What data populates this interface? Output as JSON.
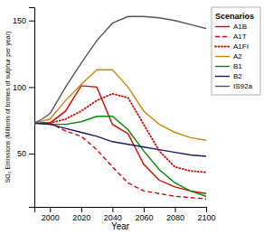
{
  "chart_data": {
    "type": "line",
    "xlabel": "Year",
    "ylabel": "SO₂ Emissions (Millions of tonnes of sulphur per year)",
    "xlim": [
      1990,
      2100
    ],
    "ylim": [
      10,
      160
    ],
    "xticks": [
      2000,
      2020,
      2040,
      2060,
      2080,
      2100
    ],
    "yticks": [
      50,
      100,
      150
    ],
    "grid": false,
    "legend": "right",
    "legend_title": "Scenarios",
    "series": [
      {
        "name": "A1B",
        "color": "#dd0000",
        "line_style": "solid",
        "x": [
          1990,
          2000,
          2010,
          2020,
          2030,
          2040,
          2050,
          2060,
          2070,
          2080,
          2090,
          2100
        ],
        "values": [
          73,
          73,
          82,
          101,
          100,
          72,
          65,
          42,
          30,
          25,
          22,
          20
        ]
      },
      {
        "name": "A1T",
        "color": "#dd0000",
        "line_style": "dashed",
        "x": [
          1990,
          2000,
          2010,
          2020,
          2030,
          2040,
          2050,
          2060,
          2070,
          2080,
          2090,
          2100
        ],
        "values": [
          73,
          73,
          67,
          63,
          53,
          40,
          28,
          22,
          20,
          18,
          17,
          16
        ]
      },
      {
        "name": "A1FI",
        "color": "#dd0000",
        "line_style": "dotted",
        "x": [
          1990,
          2000,
          2010,
          2020,
          2030,
          2040,
          2050,
          2060,
          2070,
          2080,
          2090,
          2100
        ],
        "values": [
          73,
          73,
          76,
          82,
          90,
          95,
          92,
          72,
          52,
          40,
          37,
          36
        ]
      },
      {
        "name": "A2",
        "color": "#cc8800",
        "line_style": "solid",
        "x": [
          1990,
          2000,
          2010,
          2020,
          2030,
          2040,
          2050,
          2060,
          2070,
          2080,
          2090,
          2100
        ],
        "values": [
          73,
          76,
          90,
          102,
          113,
          113,
          100,
          82,
          72,
          66,
          62,
          60
        ]
      },
      {
        "name": "B1",
        "color": "#008800",
        "line_style": "solid",
        "x": [
          1990,
          2000,
          2010,
          2020,
          2030,
          2040,
          2050,
          2060,
          2070,
          2080,
          2090,
          2100
        ],
        "values": [
          73,
          72,
          72,
          74,
          78,
          78,
          68,
          52,
          38,
          28,
          22,
          18
        ]
      },
      {
        "name": "B2",
        "color": "#1a1a5e",
        "line_style": "solid",
        "x": [
          1990,
          2000,
          2010,
          2020,
          2030,
          2040,
          2050,
          2060,
          2070,
          2080,
          2090,
          2100
        ],
        "values": [
          73,
          72,
          69,
          66,
          63,
          59,
          57,
          55,
          53,
          51,
          49,
          48
        ]
      },
      {
        "name": "IS92a",
        "color": "#555555",
        "line_style": "solid",
        "x": [
          1990,
          1995,
          2000,
          2010,
          2020,
          2030,
          2040,
          2050,
          2055,
          2060,
          2070,
          2080,
          2090,
          2100
        ],
        "values": [
          73,
          76,
          80,
          100,
          118,
          135,
          148,
          153,
          153,
          153,
          152,
          150,
          147,
          144
        ]
      }
    ]
  }
}
